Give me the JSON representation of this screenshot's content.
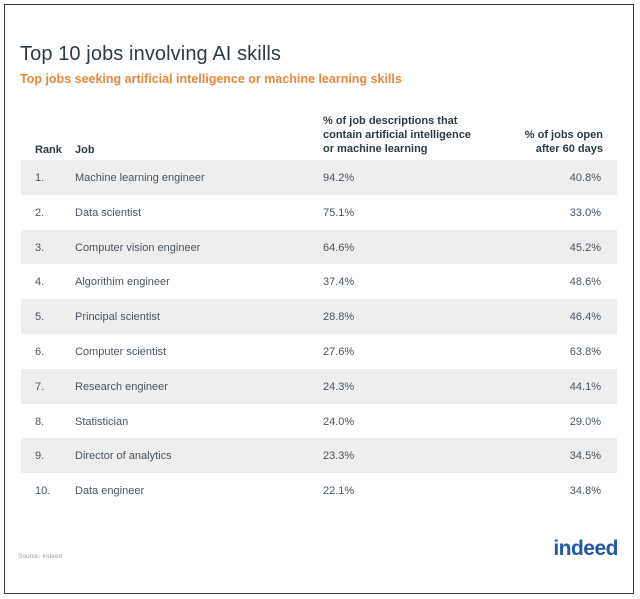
{
  "title": "Top 10 jobs involving AI skills",
  "subtitle": "Top jobs seeking artificial intelligence or machine learning skills",
  "source": "Source: Indeed",
  "logo_text": "indeed",
  "colors": {
    "title": "#2d3b45",
    "subtitle": "#e8873a",
    "shaded_row": "#eeeeee",
    "logo": "#2557a7"
  },
  "chart_data": {
    "type": "table",
    "columns": [
      "Rank",
      "Job",
      "% of job descriptions that contain artificial intelligence or machine learning",
      "% of jobs open after 60 days"
    ],
    "header_lines": {
      "pct": [
        "% of job descriptions that",
        "contain artificial intelligence",
        "or machine learning"
      ],
      "open": [
        "% of jobs open",
        "after 60 days"
      ]
    },
    "rows": [
      [
        "1.",
        "Machine learning engineer",
        "94.2%",
        "40.8%"
      ],
      [
        "2.",
        "Data scientist",
        "75.1%",
        "33.0%"
      ],
      [
        "3.",
        "Computer vision engineer",
        "64.6%",
        "45.2%"
      ],
      [
        "4.",
        "Algorithim engineer",
        "37.4%",
        "48.6%"
      ],
      [
        "5.",
        "Principal scientist",
        "28.8%",
        "46.4%"
      ],
      [
        "6.",
        "Computer scientist",
        "27.6%",
        "63.8%"
      ],
      [
        "7.",
        "Research engineer",
        "24.3%",
        "44.1%"
      ],
      [
        "8.",
        "Statistician",
        "24.0%",
        "29.0%"
      ],
      [
        "9.",
        "Director of analytics",
        "23.3%",
        "34.5%"
      ],
      [
        "10.",
        "Data engineer",
        "22.1%",
        "34.8%"
      ]
    ]
  }
}
